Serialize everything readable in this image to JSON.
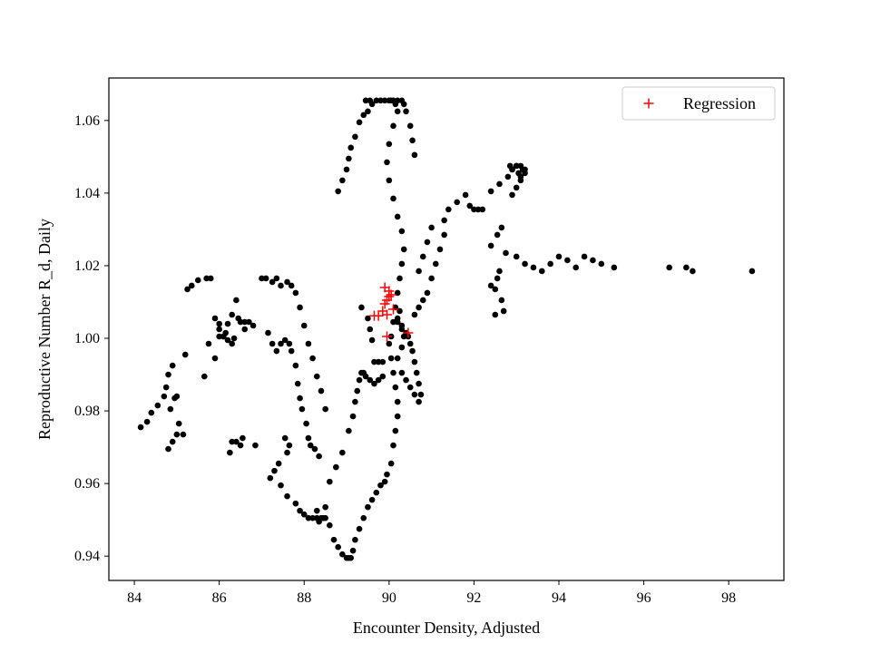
{
  "chart_data": {
    "type": "scatter",
    "xlabel": "Encounter Density, Adjusted",
    "ylabel": "Reproductive Number R_d, Daily",
    "xlim": [
      83.4,
      99.3
    ],
    "ylim": [
      0.9333,
      1.0717
    ],
    "xticks": [
      84,
      86,
      88,
      90,
      92,
      94,
      96,
      98
    ],
    "xtick_labels": [
      "84",
      "86",
      "88",
      "90",
      "92",
      "94",
      "96",
      "98"
    ],
    "yticks": [
      0.94,
      0.96,
      0.98,
      1.0,
      1.02,
      1.04,
      1.06
    ],
    "ytick_labels": [
      "0.94",
      "0.96",
      "0.98",
      "1.00",
      "1.02",
      "1.04",
      "1.06"
    ],
    "grid": false,
    "legend": {
      "placement": "top-right",
      "entries": [
        "Regression"
      ]
    },
    "colors": {
      "observed": "#000000",
      "regression": "#ff0000"
    },
    "series": [
      {
        "marker": "dot",
        "color": "#000000",
        "x": [
          84.15,
          84.3,
          84.4,
          84.55,
          84.7,
          84.75,
          84.8,
          84.9,
          85.0,
          85.05,
          85.15,
          84.85,
          84.95,
          85.0,
          84.9,
          84.8,
          85.25,
          85.35,
          85.5,
          85.7,
          85.8,
          85.9,
          86.0,
          86.1,
          86.2,
          86.3,
          86.35,
          86.0,
          85.9,
          85.75,
          85.65,
          85.2,
          86.0,
          86.1,
          86.15,
          86.2,
          86.3,
          86.4,
          86.45,
          86.5,
          86.6,
          86.7,
          86.3,
          86.25,
          86.4,
          86.5,
          86.55,
          86.85,
          86.6,
          86.8,
          87.0,
          87.1,
          87.25,
          87.35,
          87.45,
          87.6,
          87.7,
          87.8,
          87.9,
          88.0,
          88.1,
          88.2,
          88.3,
          88.4,
          88.5,
          87.15,
          87.25,
          87.35,
          87.45,
          87.55,
          87.65,
          87.7,
          87.8,
          87.85,
          87.9,
          87.95,
          88.05,
          88.1,
          88.15,
          88.25,
          88.35,
          87.55,
          87.65,
          87.6,
          87.4,
          87.3,
          87.2,
          87.45,
          87.6,
          87.8,
          87.9,
          88.0,
          88.1,
          88.2,
          88.3,
          88.35,
          88.4,
          88.45,
          88.3,
          88.5,
          88.6,
          88.7,
          88.8,
          88.9,
          89.0,
          89.05,
          89.1,
          89.15,
          89.2,
          89.3,
          89.4,
          89.5,
          89.6,
          89.7,
          89.8,
          89.9,
          88.5,
          88.6,
          88.75,
          88.9,
          89.05,
          89.15,
          89.2,
          89.25,
          89.3,
          89.35,
          89.4,
          89.45,
          89.55,
          89.65,
          89.75,
          89.85,
          89.95,
          90.05,
          90.1,
          90.15,
          90.2,
          90.2,
          90.15,
          90.1,
          90.05,
          90.0,
          90.05,
          90.1,
          90.15,
          90.2,
          90.25,
          90.3,
          90.35,
          90.3,
          90.2,
          90.1,
          90.0,
          89.95,
          90.0,
          90.1,
          90.2,
          90.15,
          90.05,
          89.45,
          89.55,
          89.6,
          89.5,
          89.4,
          89.3,
          89.2,
          89.1,
          89.05,
          89.0,
          88.9,
          88.8,
          89.7,
          89.8,
          89.9,
          90.0,
          90.1,
          90.2,
          90.3,
          90.35,
          90.4,
          90.5,
          90.55,
          90.6,
          90.2,
          90.25,
          90.3,
          90.4,
          90.45,
          90.5,
          90.55,
          90.6,
          90.65,
          90.7,
          90.75,
          90.7,
          90.6,
          90.5,
          90.4,
          90.3,
          90.6,
          90.7,
          90.8,
          90.9,
          91.0,
          91.1,
          91.2,
          91.3,
          91.0,
          90.9,
          90.8,
          90.7,
          91.3,
          91.4,
          91.6,
          91.8,
          91.9,
          92.0,
          92.1,
          92.2,
          92.4,
          92.6,
          92.8,
          92.9,
          93.0,
          93.1,
          93.2,
          92.85,
          92.9,
          93.0,
          93.05,
          93.1,
          93.15,
          93.2,
          93.1,
          93.0,
          92.9,
          92.4,
          92.5,
          92.55,
          92.6,
          92.65,
          92.7,
          92.5,
          92.4,
          92.55,
          92.65,
          92.75,
          93.0,
          93.2,
          93.4,
          93.6,
          93.8,
          94.0,
          94.2,
          94.4,
          94.6,
          94.8,
          95.0,
          95.3,
          96.6,
          97.0,
          97.15,
          98.55,
          89.35,
          89.5,
          89.55,
          89.6,
          89.65,
          89.75,
          89.85,
          90.2,
          90.3,
          90.35,
          90.3,
          90.2
        ],
        "y": [
          0.9755,
          0.977,
          0.9795,
          0.9815,
          0.984,
          0.9865,
          0.99,
          0.9925,
          0.984,
          0.9765,
          0.9735,
          0.9805,
          0.9835,
          0.9735,
          0.9715,
          0.9695,
          1.0135,
          1.0145,
          1.016,
          1.0165,
          1.0165,
          1.0055,
          1.004,
          1.0005,
          0.9995,
          0.9985,
          1.0,
          1.0025,
          0.9945,
          0.9985,
          0.9895,
          0.9955,
          1.0005,
          1.0005,
          1.0015,
          1.004,
          1.0065,
          1.0105,
          1.0055,
          1.0045,
          1.0025,
          1.0045,
          0.9715,
          0.9685,
          0.9715,
          0.9705,
          0.9725,
          0.9705,
          1.0045,
          1.0035,
          1.0165,
          1.0165,
          1.0155,
          1.0165,
          1.0145,
          1.0155,
          1.0145,
          1.0125,
          1.0085,
          1.0035,
          0.9985,
          0.9945,
          0.9895,
          0.9855,
          0.9805,
          1.0015,
          0.9985,
          0.9965,
          0.9985,
          0.9995,
          0.9985,
          0.9965,
          0.9925,
          0.9875,
          0.9835,
          0.9805,
          0.9765,
          0.9725,
          0.9705,
          0.9695,
          0.9675,
          0.9725,
          0.9705,
          0.9685,
          0.9655,
          0.9635,
          0.9615,
          0.9595,
          0.9565,
          0.9545,
          0.9525,
          0.9515,
          0.9505,
          0.9505,
          0.9505,
          0.9495,
          0.9505,
          0.9505,
          0.9525,
          0.9505,
          0.9485,
          0.9445,
          0.9425,
          0.9405,
          0.9395,
          0.9395,
          0.9395,
          0.9415,
          0.9445,
          0.9475,
          0.9505,
          0.9535,
          0.9555,
          0.9575,
          0.9595,
          0.9605,
          0.9535,
          0.9605,
          0.9645,
          0.9685,
          0.9745,
          0.9785,
          0.9825,
          0.9855,
          0.9885,
          0.9905,
          0.9905,
          0.9895,
          0.9885,
          0.9875,
          0.9885,
          0.9895,
          0.9625,
          0.9655,
          0.9705,
          0.9745,
          0.9785,
          0.9825,
          0.9865,
          0.9905,
          0.9945,
          0.9985,
          1.0005,
          1.0045,
          1.0085,
          1.0125,
          1.0165,
          1.0205,
          1.0245,
          1.0295,
          1.0335,
          1.0385,
          1.0435,
          1.0485,
          1.0535,
          1.0585,
          1.0625,
          1.0645,
          1.0655,
          1.0655,
          1.0655,
          1.0645,
          1.0625,
          1.0615,
          1.0595,
          1.0555,
          1.0525,
          1.0495,
          1.0465,
          1.0435,
          1.0405,
          1.0655,
          1.0655,
          1.0655,
          1.0655,
          1.0655,
          1.0655,
          1.0655,
          1.0645,
          1.0625,
          1.0585,
          1.0545,
          1.0505,
          1.0045,
          1.0075,
          1.0035,
          1.0015,
          1.0005,
          0.9985,
          0.9965,
          0.9935,
          0.9905,
          0.9875,
          0.9845,
          0.9825,
          0.9845,
          0.9865,
          0.9885,
          0.9905,
          1.0065,
          1.0085,
          1.0105,
          1.0125,
          1.0165,
          1.0205,
          1.0245,
          1.0285,
          1.0305,
          1.0265,
          1.0225,
          1.0185,
          1.0325,
          1.0355,
          1.0375,
          1.0395,
          1.0365,
          1.0355,
          1.0355,
          1.0355,
          1.0405,
          1.0425,
          1.0445,
          1.0465,
          1.0475,
          1.0475,
          1.0465,
          1.0475,
          1.0465,
          1.0475,
          1.0455,
          1.0445,
          1.0465,
          1.0455,
          1.0435,
          1.0415,
          1.0395,
          1.0145,
          1.0135,
          1.0165,
          1.0185,
          1.0105,
          1.0075,
          1.0065,
          1.0255,
          1.0285,
          1.0305,
          1.0235,
          1.0225,
          1.0205,
          1.0195,
          1.0185,
          1.0205,
          1.0225,
          1.0215,
          1.0195,
          1.0225,
          1.0215,
          1.0205,
          1.0195,
          1.0195,
          1.0195,
          1.0185,
          1.0185,
          1.0085,
          1.0055,
          1.0025,
          0.9995,
          0.9935,
          0.9935,
          0.9935,
          0.9945,
          0.9975,
          1.0005,
          1.0025,
          1.0055
        ]
      },
      {
        "name": "Regression",
        "marker": "plus",
        "color": "#ff0000",
        "x": [
          89.65,
          89.75,
          89.85,
          89.9,
          89.95,
          90.0,
          90.05,
          89.9,
          90.0,
          89.95,
          90.1,
          90.45,
          89.95
        ],
        "y": [
          1.0062,
          1.0062,
          1.0075,
          1.0095,
          1.0105,
          1.0115,
          1.012,
          1.014,
          1.013,
          1.0065,
          1.008,
          1.0015,
          1.0005
        ]
      }
    ]
  }
}
